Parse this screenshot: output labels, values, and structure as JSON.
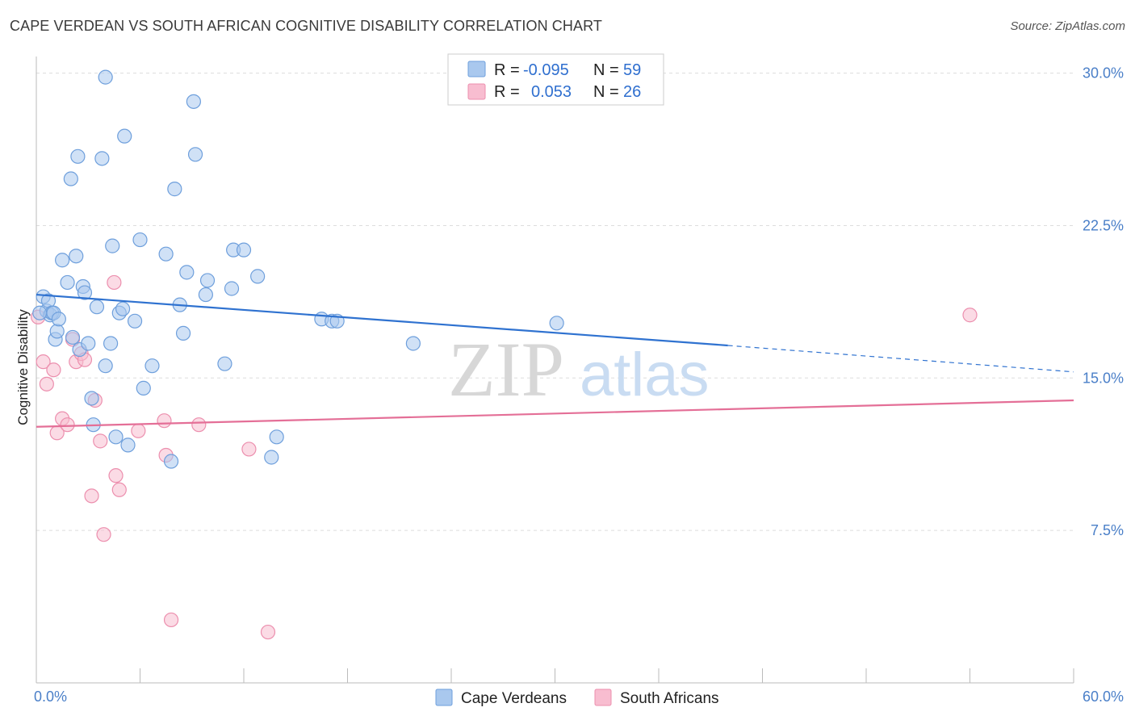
{
  "title": "CAPE VERDEAN VS SOUTH AFRICAN COGNITIVE DISABILITY CORRELATION CHART",
  "source": "Source: ZipAtlas.com",
  "watermark": {
    "zip": "ZIP",
    "atlas": "atlas"
  },
  "colors": {
    "blue_fill": "#a9c8ee",
    "blue_stroke": "#6e9fdc",
    "blue_line": "#2f72d0",
    "pink_fill": "#f8bdd0",
    "pink_stroke": "#ec8fae",
    "pink_line": "#e46f97",
    "axis_text": "#4a7fc8",
    "grid": "#dddddd"
  },
  "legend": {
    "rows": [
      {
        "r_label": "R =",
        "r_value": "-0.095",
        "n_label": "N =",
        "n_value": "59"
      },
      {
        "r_label": "R =",
        "r_value": "0.053",
        "n_label": "N =",
        "n_value": "26"
      }
    ]
  },
  "bottom_legend": {
    "blue": "Cape Verdeans",
    "pink": "South Africans"
  },
  "chart_data": {
    "type": "scatter",
    "title": "CAPE VERDEAN VS SOUTH AFRICAN COGNITIVE DISABILITY CORRELATION CHART",
    "xlabel": "",
    "ylabel": "Cognitive Disability",
    "xlim": [
      0,
      60
    ],
    "ylim": [
      0,
      31
    ],
    "x_tick_labels": [
      "0.0%",
      "60.0%"
    ],
    "y_ticks": [
      7.5,
      15.0,
      22.5,
      30.0
    ],
    "y_tick_labels": [
      "7.5%",
      "15.0%",
      "22.5%",
      "30.0%"
    ],
    "grid": true,
    "legend_position": "top-center",
    "series": [
      {
        "name": "Cape Verdeans",
        "trend": {
          "x_solid": [
            0,
            40
          ],
          "y_solid": [
            19.1,
            16.6
          ],
          "x_dashed": [
            40,
            60
          ],
          "y_dashed": [
            16.6,
            15.3
          ]
        },
        "points": [
          [
            0.4,
            19.0
          ],
          [
            0.6,
            18.3
          ],
          [
            0.7,
            18.8
          ],
          [
            0.8,
            18.1
          ],
          [
            0.9,
            18.2
          ],
          [
            1.0,
            18.2
          ],
          [
            1.1,
            16.9
          ],
          [
            1.2,
            17.3
          ],
          [
            1.3,
            17.9
          ],
          [
            1.5,
            20.8
          ],
          [
            1.8,
            19.7
          ],
          [
            2.0,
            24.8
          ],
          [
            2.1,
            17.0
          ],
          [
            2.3,
            21.0
          ],
          [
            2.4,
            25.9
          ],
          [
            2.5,
            16.4
          ],
          [
            2.7,
            19.5
          ],
          [
            2.8,
            19.2
          ],
          [
            3.0,
            16.7
          ],
          [
            3.2,
            14.0
          ],
          [
            3.3,
            12.7
          ],
          [
            3.5,
            18.5
          ],
          [
            3.8,
            25.8
          ],
          [
            4.0,
            15.6
          ],
          [
            4.0,
            29.8
          ],
          [
            4.3,
            16.7
          ],
          [
            4.4,
            21.5
          ],
          [
            4.6,
            12.1
          ],
          [
            4.8,
            18.2
          ],
          [
            5.0,
            18.4
          ],
          [
            5.1,
            26.9
          ],
          [
            5.3,
            11.7
          ],
          [
            5.7,
            17.8
          ],
          [
            6.0,
            21.8
          ],
          [
            6.2,
            14.5
          ],
          [
            6.7,
            15.6
          ],
          [
            7.5,
            21.1
          ],
          [
            7.8,
            10.9
          ],
          [
            8.0,
            24.3
          ],
          [
            8.3,
            18.6
          ],
          [
            8.5,
            17.2
          ],
          [
            8.7,
            20.2
          ],
          [
            9.1,
            28.6
          ],
          [
            9.2,
            26.0
          ],
          [
            9.8,
            19.1
          ],
          [
            9.9,
            19.8
          ],
          [
            10.9,
            15.7
          ],
          [
            11.3,
            19.4
          ],
          [
            11.4,
            21.3
          ],
          [
            12.0,
            21.3
          ],
          [
            12.8,
            20.0
          ],
          [
            13.6,
            11.1
          ],
          [
            13.9,
            12.1
          ],
          [
            16.5,
            17.9
          ],
          [
            17.1,
            17.8
          ],
          [
            17.4,
            17.8
          ],
          [
            21.8,
            16.7
          ],
          [
            30.1,
            17.7
          ],
          [
            0.2,
            18.2
          ]
        ]
      },
      {
        "name": "South Africans",
        "trend": {
          "x_solid": [
            0,
            60
          ],
          "y_solid": [
            12.6,
            13.9
          ]
        },
        "points": [
          [
            0.1,
            18.0
          ],
          [
            0.4,
            15.8
          ],
          [
            0.6,
            14.7
          ],
          [
            1.0,
            15.4
          ],
          [
            1.2,
            12.3
          ],
          [
            1.5,
            13.0
          ],
          [
            1.8,
            12.7
          ],
          [
            2.1,
            16.9
          ],
          [
            2.3,
            15.8
          ],
          [
            2.6,
            16.2
          ],
          [
            2.8,
            15.9
          ],
          [
            3.2,
            9.2
          ],
          [
            3.4,
            13.9
          ],
          [
            3.7,
            11.9
          ],
          [
            3.9,
            7.3
          ],
          [
            4.5,
            19.7
          ],
          [
            4.6,
            10.2
          ],
          [
            4.8,
            9.5
          ],
          [
            5.9,
            12.4
          ],
          [
            7.4,
            12.9
          ],
          [
            7.5,
            11.2
          ],
          [
            7.8,
            3.1
          ],
          [
            9.4,
            12.7
          ],
          [
            12.3,
            11.5
          ],
          [
            13.4,
            2.5
          ],
          [
            54.0,
            18.1
          ]
        ]
      }
    ]
  }
}
